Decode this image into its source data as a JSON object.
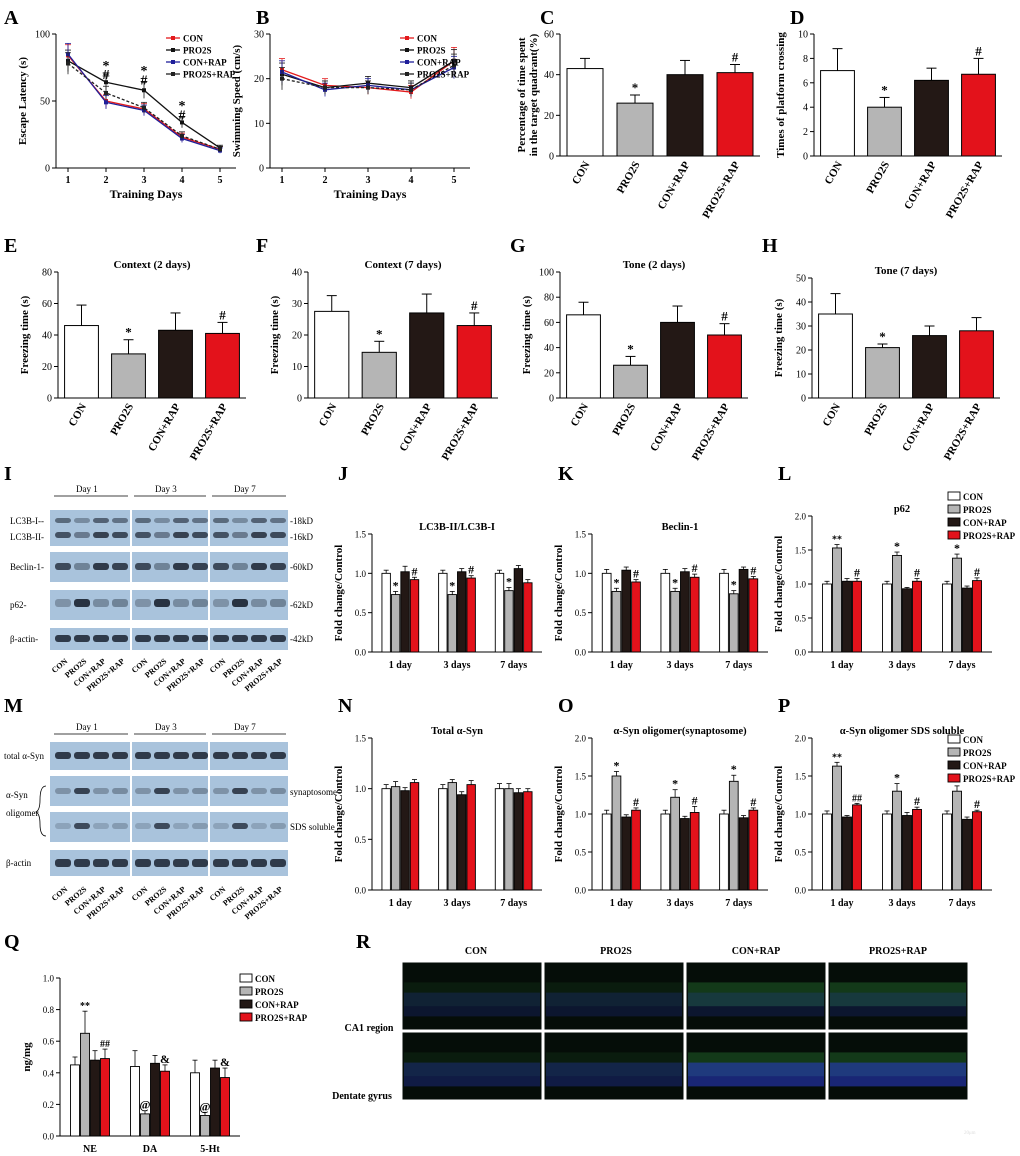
{
  "colors": {
    "con": "#ffffff",
    "pro2s": "#b5b5b5",
    "conrap": "#231815",
    "pro2srap": "#e3121b",
    "line_con": "#e31a1c",
    "line_pro2s": "#111111",
    "line_conrap": "#1f1f9a",
    "line_pro2srap": "#222222",
    "blot_bg": "#a9c3dc",
    "blot_band": "#1a2230",
    "micro_bg": "#050d08"
  },
  "legend4": [
    "CON",
    "PRO2S",
    "CON+RAP",
    "PRO2S+RAP"
  ],
  "chart_data": [
    {
      "panel": "A",
      "type": "line",
      "xlabel": "Training Days",
      "ylabel": "Escape Latency (s)",
      "ylim": [
        0,
        100
      ],
      "yticks": [
        0,
        50,
        100
      ],
      "x": [
        1,
        2,
        3,
        4,
        5
      ],
      "series": [
        {
          "name": "CON",
          "values": [
            84,
            50,
            44,
            23,
            14
          ],
          "err": [
            8,
            5,
            4,
            3,
            2
          ]
        },
        {
          "name": "PRO2S",
          "values": [
            80,
            64,
            58,
            34,
            15
          ],
          "err": [
            8,
            6,
            6,
            4,
            2
          ]
        },
        {
          "name": "CON+RAP",
          "values": [
            85,
            49,
            43,
            22,
            13
          ],
          "err": [
            8,
            5,
            4,
            3,
            2
          ]
        },
        {
          "name": "PRO2S+RAP",
          "values": [
            78,
            56,
            45,
            24,
            14
          ],
          "err": [
            8,
            5,
            4,
            3,
            2
          ]
        }
      ],
      "annotations": [
        {
          "x": 2,
          "text": "*",
          "y": 77
        },
        {
          "x": 2,
          "text": "#",
          "y": 70
        },
        {
          "x": 3,
          "text": "*",
          "y": 73
        },
        {
          "x": 3,
          "text": "#",
          "y": 66
        },
        {
          "x": 4,
          "text": "*",
          "y": 47
        },
        {
          "x": 4,
          "text": "#",
          "y": 40
        }
      ]
    },
    {
      "panel": "B",
      "type": "line",
      "xlabel": "Training Days",
      "ylabel": "Swimming Speed (cm/s)",
      "ylim": [
        0,
        30
      ],
      "yticks": [
        0,
        10,
        20,
        30
      ],
      "x": [
        1,
        2,
        3,
        4,
        5
      ],
      "series": [
        {
          "name": "CON",
          "values": [
            22,
            18.5,
            18,
            17,
            24
          ],
          "err": [
            2.5,
            1.5,
            1.5,
            1.5,
            3
          ]
        },
        {
          "name": "PRO2S",
          "values": [
            21,
            18,
            19,
            18,
            24
          ],
          "err": [
            2.5,
            1.5,
            1.5,
            1.5,
            2.5
          ]
        },
        {
          "name": "CON+RAP",
          "values": [
            21.5,
            17.5,
            18.5,
            17.5,
            22.5
          ],
          "err": [
            2.5,
            1.5,
            1.5,
            1.5,
            2.5
          ]
        },
        {
          "name": "PRO2S+RAP",
          "values": [
            20,
            18,
            18,
            17.5,
            23
          ],
          "err": [
            2.5,
            1.5,
            1.5,
            1.5,
            2.5
          ]
        }
      ],
      "annotations": []
    },
    {
      "panel": "C",
      "type": "bar",
      "title": "",
      "ylabel": "Percentage of time spent in the target quadrant(%)",
      "ylim": [
        0,
        60
      ],
      "yticks": [
        0,
        20,
        40,
        60
      ],
      "categories": [
        "CON",
        "PRO2S",
        "CON+RAP",
        "PRO2S+RAP"
      ],
      "values": [
        43,
        26,
        40,
        41
      ],
      "err": [
        5,
        4,
        7,
        4
      ],
      "marks": [
        "",
        "*",
        "",
        "#"
      ]
    },
    {
      "panel": "D",
      "type": "bar",
      "title": "",
      "ylabel": "Times of platform crossing",
      "ylim": [
        0,
        10
      ],
      "yticks": [
        0,
        2,
        4,
        6,
        8,
        10
      ],
      "categories": [
        "CON",
        "PRO2S",
        "CON+RAP",
        "PRO2S+RAP"
      ],
      "values": [
        7,
        4,
        6.2,
        6.7
      ],
      "err": [
        1.8,
        0.8,
        1.0,
        1.3
      ],
      "marks": [
        "",
        "*",
        "",
        "#"
      ]
    },
    {
      "panel": "E",
      "type": "bar",
      "title": "Context (2 days)",
      "ylabel": "Freezing time (s)",
      "ylim": [
        0,
        80
      ],
      "yticks": [
        0,
        20,
        40,
        60,
        80
      ],
      "categories": [
        "CON",
        "PRO2S",
        "CON+RAP",
        "PRO2S+RAP"
      ],
      "values": [
        46,
        28,
        43,
        41
      ],
      "err": [
        13,
        9,
        11,
        7
      ],
      "marks": [
        "",
        "*",
        "",
        "#"
      ]
    },
    {
      "panel": "F",
      "type": "bar",
      "title": "Context (7 days)",
      "ylabel": "Freezing time (s)",
      "ylim": [
        0,
        40
      ],
      "yticks": [
        0,
        10,
        20,
        30,
        40
      ],
      "categories": [
        "CON",
        "PRO2S",
        "CON+RAP",
        "PRO2S+RAP"
      ],
      "values": [
        27.5,
        14.5,
        27,
        23
      ],
      "err": [
        5,
        3.5,
        6,
        4
      ],
      "marks": [
        "",
        "*",
        "",
        "#"
      ]
    },
    {
      "panel": "G",
      "type": "bar",
      "title": "Tone (2 days)",
      "ylabel": "Freezing time (s)",
      "ylim": [
        0,
        100
      ],
      "yticks": [
        0,
        20,
        40,
        60,
        80,
        100
      ],
      "categories": [
        "CON",
        "PRO2S",
        "CON+RAP",
        "PRO2S+RAP"
      ],
      "values": [
        66,
        26,
        60,
        50
      ],
      "err": [
        10,
        7,
        13,
        9
      ],
      "marks": [
        "",
        "*",
        "",
        "#"
      ]
    },
    {
      "panel": "H",
      "type": "bar",
      "title": "Tone (7 days)",
      "ylabel": "Freezing time (s)",
      "ylim": [
        0,
        50
      ],
      "yticks": [
        0,
        10,
        20,
        30,
        40,
        50
      ],
      "categories": [
        "CON",
        "PRO2S",
        "CON+RAP",
        "PRO2S+RAP"
      ],
      "values": [
        35,
        21,
        26,
        28
      ],
      "err": [
        8.5,
        1.5,
        4,
        5.5
      ],
      "marks": [
        "",
        "*",
        "",
        ""
      ]
    },
    {
      "panel": "J",
      "type": "bar",
      "title": "LC3B-II/LC3B-I",
      "ylabel": "Fold change/Control",
      "ylim": [
        0,
        1.5
      ],
      "yticks": [
        "0.0",
        "0.5",
        "1.0",
        "1.5"
      ],
      "categories": [
        "1 day",
        "3 days",
        "7 days"
      ],
      "series": [
        {
          "name": "CON",
          "values": [
            1.0,
            1.0,
            1.0
          ],
          "err": [
            0.04,
            0.04,
            0.04
          ]
        },
        {
          "name": "PRO2S",
          "values": [
            0.73,
            0.73,
            0.78
          ],
          "err": [
            0.04,
            0.04,
            0.04
          ]
        },
        {
          "name": "CON+RAP",
          "values": [
            1.02,
            1.02,
            1.06
          ],
          "err": [
            0.07,
            0.04,
            0.04
          ]
        },
        {
          "name": "PRO2S+RAP",
          "values": [
            0.92,
            0.94,
            0.88
          ],
          "err": [
            0.03,
            0.03,
            0.04
          ]
        }
      ],
      "marks": [
        [
          "",
          "*",
          "",
          "#"
        ],
        [
          "",
          "*",
          "",
          "#"
        ],
        [
          "",
          "*",
          "",
          ""
        ]
      ]
    },
    {
      "panel": "K",
      "type": "bar",
      "title": "Beclin-1",
      "ylabel": "Fold change/Control",
      "ylim": [
        0,
        1.5
      ],
      "yticks": [
        "0.0",
        "0.5",
        "1.0",
        "1.5"
      ],
      "categories": [
        "1 day",
        "3 days",
        "7 days"
      ],
      "series": [
        {
          "name": "CON",
          "values": [
            1.0,
            1.0,
            1.0
          ],
          "err": [
            0.05,
            0.05,
            0.05
          ]
        },
        {
          "name": "PRO2S",
          "values": [
            0.77,
            0.77,
            0.74
          ],
          "err": [
            0.04,
            0.04,
            0.04
          ]
        },
        {
          "name": "CON+RAP",
          "values": [
            1.04,
            1.02,
            1.05
          ],
          "err": [
            0.04,
            0.04,
            0.03
          ]
        },
        {
          "name": "PRO2S+RAP",
          "values": [
            0.89,
            0.95,
            0.93
          ],
          "err": [
            0.03,
            0.04,
            0.03
          ]
        }
      ],
      "marks": [
        [
          "",
          "*",
          "",
          "#"
        ],
        [
          "",
          "*",
          "",
          "#"
        ],
        [
          "",
          "*",
          "",
          "#"
        ]
      ]
    },
    {
      "panel": "L",
      "type": "bar",
      "title": "p62",
      "ylabel": "Fold change/Control",
      "ylim": [
        0,
        2.0
      ],
      "yticks": [
        "0.0",
        "0.5",
        "1.0",
        "1.5",
        "2.0"
      ],
      "categories": [
        "1 day",
        "3 days",
        "7 days"
      ],
      "series": [
        {
          "name": "CON",
          "values": [
            1.0,
            1.0,
            1.0
          ],
          "err": [
            0.04,
            0.04,
            0.04
          ]
        },
        {
          "name": "PRO2S",
          "values": [
            1.53,
            1.42,
            1.38
          ],
          "err": [
            0.05,
            0.05,
            0.06
          ]
        },
        {
          "name": "CON+RAP",
          "values": [
            1.04,
            0.93,
            0.94
          ],
          "err": [
            0.04,
            0.02,
            0.03
          ]
        },
        {
          "name": "PRO2S+RAP",
          "values": [
            1.04,
            1.04,
            1.05
          ],
          "err": [
            0.04,
            0.04,
            0.04
          ]
        }
      ],
      "marks": [
        [
          "",
          "**",
          "",
          "#"
        ],
        [
          "",
          "*",
          "",
          "#"
        ],
        [
          "",
          "*",
          "",
          "#"
        ]
      ]
    },
    {
      "panel": "N",
      "type": "bar",
      "title": "Total α-Syn",
      "ylabel": "Fold change/Control",
      "ylim": [
        0,
        1.5
      ],
      "yticks": [
        "0.0",
        "0.5",
        "1.0",
        "1.5"
      ],
      "categories": [
        "1 day",
        "3 days",
        "7 days"
      ],
      "series": [
        {
          "name": "CON",
          "values": [
            1.0,
            1.0,
            1.0
          ],
          "err": [
            0.04,
            0.04,
            0.05
          ]
        },
        {
          "name": "PRO2S",
          "values": [
            1.02,
            1.06,
            1.0
          ],
          "err": [
            0.05,
            0.03,
            0.05
          ]
        },
        {
          "name": "CON+RAP",
          "values": [
            0.98,
            0.94,
            0.96
          ],
          "err": [
            0.03,
            0.03,
            0.04
          ]
        },
        {
          "name": "PRO2S+RAP",
          "values": [
            1.06,
            1.04,
            0.97
          ],
          "err": [
            0.03,
            0.04,
            0.03
          ]
        }
      ],
      "marks": [
        [
          "",
          "",
          "",
          ""
        ],
        [
          "",
          "",
          "",
          ""
        ],
        [
          "",
          "",
          "",
          ""
        ]
      ]
    },
    {
      "panel": "O",
      "type": "bar",
      "title": "α-Syn oligomer(synaptosome)",
      "ylabel": "Fold change/Control",
      "ylim": [
        0,
        2.0
      ],
      "yticks": [
        "0.0",
        "0.5",
        "1.0",
        "1.5",
        "2.0"
      ],
      "categories": [
        "1 day",
        "3 days",
        "7 days"
      ],
      "series": [
        {
          "name": "CON",
          "values": [
            1.0,
            1.0,
            1.0
          ],
          "err": [
            0.05,
            0.05,
            0.05
          ]
        },
        {
          "name": "PRO2S",
          "values": [
            1.5,
            1.22,
            1.43
          ],
          "err": [
            0.06,
            0.1,
            0.08
          ]
        },
        {
          "name": "CON+RAP",
          "values": [
            0.96,
            0.94,
            0.95
          ],
          "err": [
            0.03,
            0.03,
            0.03
          ]
        },
        {
          "name": "PRO2S+RAP",
          "values": [
            1.05,
            1.02,
            1.05
          ],
          "err": [
            0.03,
            0.08,
            0.03
          ]
        }
      ],
      "marks": [
        [
          "",
          "*",
          "",
          "#"
        ],
        [
          "",
          "*",
          "",
          "#"
        ],
        [
          "",
          "*",
          "",
          "#"
        ]
      ]
    },
    {
      "panel": "P",
      "type": "bar",
      "title": "α-Syn oligomer SDS soluble",
      "ylabel": "Fold change/Control",
      "ylim": [
        0,
        2.0
      ],
      "yticks": [
        "0.0",
        "0.5",
        "1.0",
        "1.5",
        "2.0"
      ],
      "categories": [
        "1 day",
        "3 days",
        "7 days"
      ],
      "series": [
        {
          "name": "CON",
          "values": [
            1.0,
            1.0,
            1.0
          ],
          "err": [
            0.04,
            0.04,
            0.04
          ]
        },
        {
          "name": "PRO2S",
          "values": [
            1.63,
            1.3,
            1.3
          ],
          "err": [
            0.05,
            0.1,
            0.07
          ]
        },
        {
          "name": "CON+RAP",
          "values": [
            0.96,
            0.98,
            0.93
          ],
          "err": [
            0.02,
            0.04,
            0.03
          ]
        },
        {
          "name": "PRO2S+RAP",
          "values": [
            1.12,
            1.06,
            1.03
          ],
          "err": [
            0.02,
            0.03,
            0.02
          ]
        }
      ],
      "marks": [
        [
          "",
          "**",
          "",
          "##"
        ],
        [
          "",
          "*",
          "",
          "#"
        ],
        [
          "",
          "*",
          "",
          "#"
        ]
      ]
    },
    {
      "panel": "Q",
      "type": "bar",
      "title": "",
      "ylabel": "ng/mg",
      "ylim": [
        0,
        1.0
      ],
      "yticks": [
        "0.0",
        "0.2",
        "0.4",
        "0.6",
        "0.8",
        "1.0"
      ],
      "categories": [
        "NE",
        "DA",
        "5-Ht"
      ],
      "series": [
        {
          "name": "CON",
          "values": [
            0.45,
            0.44,
            0.4
          ],
          "err": [
            0.05,
            0.1,
            0.08
          ]
        },
        {
          "name": "PRO2S",
          "values": [
            0.65,
            0.14,
            0.13
          ],
          "err": [
            0.14,
            0.02,
            0.02
          ]
        },
        {
          "name": "CON+RAP",
          "values": [
            0.48,
            0.46,
            0.43
          ],
          "err": [
            0.06,
            0.05,
            0.05
          ]
        },
        {
          "name": "PRO2S+RAP",
          "values": [
            0.49,
            0.41,
            0.37
          ],
          "err": [
            0.06,
            0.04,
            0.06
          ]
        }
      ],
      "marks": [
        [
          "",
          "**",
          "",
          "##"
        ],
        [
          "",
          "@",
          "",
          "&"
        ],
        [
          "",
          "@",
          "",
          "&"
        ]
      ]
    }
  ],
  "panel_A": {
    "label": "A"
  },
  "panel_B": {
    "label": "B"
  },
  "panel_C": {
    "label": "C"
  },
  "panel_D": {
    "label": "D"
  },
  "panel_E": {
    "label": "E"
  },
  "panel_F": {
    "label": "F"
  },
  "panel_G": {
    "label": "G"
  },
  "panel_H": {
    "label": "H"
  },
  "panel_I": {
    "label": "I",
    "days": [
      "Day 1",
      "Day 3",
      "Day 7"
    ],
    "rows": [
      "LC3B-I--",
      "LC3B-II-",
      "Beclin-1-",
      "p62-",
      "β-actin-"
    ],
    "kd": [
      "-18kD",
      "-16kD",
      "-60kD",
      "-62kD",
      "-42kD"
    ],
    "lanes": [
      "CON",
      "PRO2S",
      "CON+RAP",
      "PRO2S+RAP"
    ]
  },
  "panel_J": {
    "label": "J"
  },
  "panel_K": {
    "label": "K"
  },
  "panel_L": {
    "label": "L"
  },
  "panel_M": {
    "label": "M",
    "days": [
      "Day 1",
      "Day 3",
      "Day 7"
    ],
    "rows": [
      "total α-Syn",
      "α-Syn",
      "oligomer",
      "β-actin"
    ],
    "side": [
      "synaptosome",
      "SDS soluble"
    ],
    "lanes": [
      "CON",
      "PRO2S",
      "CON+RAP",
      "PRO2S+RAP"
    ]
  },
  "panel_N": {
    "label": "N"
  },
  "panel_O": {
    "label": "O"
  },
  "panel_P": {
    "label": "P"
  },
  "panel_Q": {
    "label": "Q"
  },
  "panel_R": {
    "label": "R",
    "cols": [
      "CON",
      "PRO2S",
      "CON+RAP",
      "PRO2S+RAP"
    ],
    "rows": [
      "CA1 region",
      "Dentate gyrus"
    ],
    "scale": "20μm"
  }
}
